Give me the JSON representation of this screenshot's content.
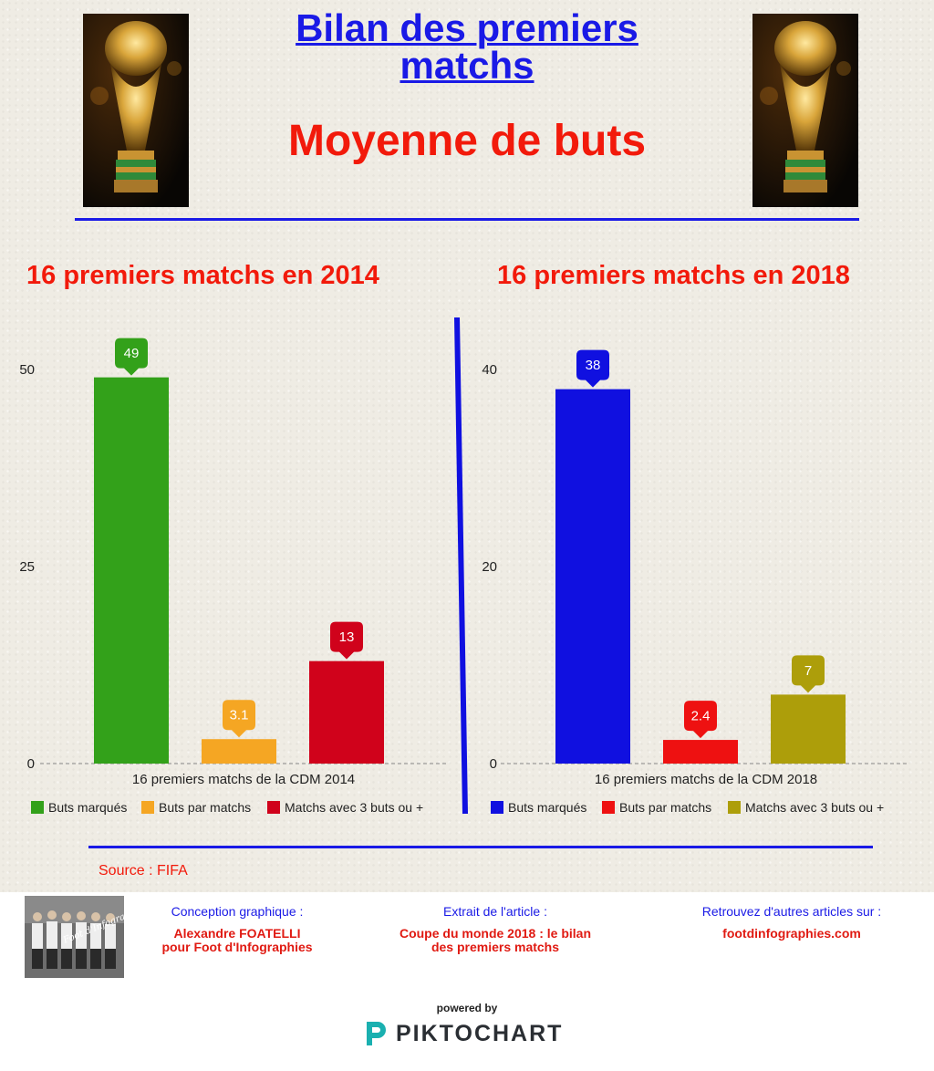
{
  "header": {
    "title": "Bilan des premiers matchs",
    "subtitle": "Moyenne de buts"
  },
  "charts": {
    "left_heading": "16 premiers matchs en 2014",
    "right_heading": "16 premiers matchs en 2018"
  },
  "colors": {
    "accent_blue": "#1a1ae6",
    "accent_red": "#f21a0b"
  },
  "chart_data": [
    {
      "type": "bar",
      "title": "16 premiers matchs en 2014",
      "categories": [
        "16 premiers matchs de la CDM 2014"
      ],
      "series": [
        {
          "name": "Buts marqués",
          "values": [
            49
          ],
          "labels": [
            "49"
          ],
          "color": "#33a11a"
        },
        {
          "name": "Buts par matchs",
          "values": [
            3.1
          ],
          "labels": [
            "3.1"
          ],
          "color": "#f5a623"
        },
        {
          "name": "Matchs avec 3 buts ou +",
          "values": [
            13
          ],
          "labels": [
            "13"
          ],
          "color": "#d0021b"
        }
      ],
      "ylim": [
        0,
        50
      ],
      "yticks": [
        "0",
        "25",
        "50"
      ],
      "legend": "bottom",
      "grid": false
    },
    {
      "type": "bar",
      "title": "16 premiers matchs en 2018",
      "categories": [
        "16 premiers matchs de la CDM 2018"
      ],
      "series": [
        {
          "name": "Buts marqués",
          "values": [
            38
          ],
          "labels": [
            "38"
          ],
          "color": "#1010e0"
        },
        {
          "name": "Buts par matchs",
          "values": [
            2.4
          ],
          "labels": [
            "2.4"
          ],
          "color": "#ee1111"
        },
        {
          "name": "Matchs avec 3 buts ou +",
          "values": [
            7
          ],
          "labels": [
            "7"
          ],
          "color": "#ad9e0a"
        }
      ],
      "ylim": [
        0,
        40
      ],
      "yticks": [
        "0",
        "20",
        "40"
      ],
      "legend": "bottom",
      "grid": false
    }
  ],
  "source": "Source : FIFA",
  "footer": {
    "photo_caption": "Foot d'Infographies",
    "credits": [
      {
        "label": "Conception graphique :",
        "value_line1": "Alexandre FOATELLI",
        "value_line2": "pour Foot d'Infographies"
      },
      {
        "label": "Extrait de l'article :",
        "value_line1": "Coupe du monde 2018 : le bilan",
        "value_line2": "des premiers matchs"
      },
      {
        "label": "Retrouvez d'autres articles sur :",
        "value_line1": "footdinfographies.com",
        "value_line2": ""
      }
    ],
    "powered_by": "powered by",
    "brand": "PIKTOCHART",
    "brand_icon": "piktochart-logo-icon"
  }
}
